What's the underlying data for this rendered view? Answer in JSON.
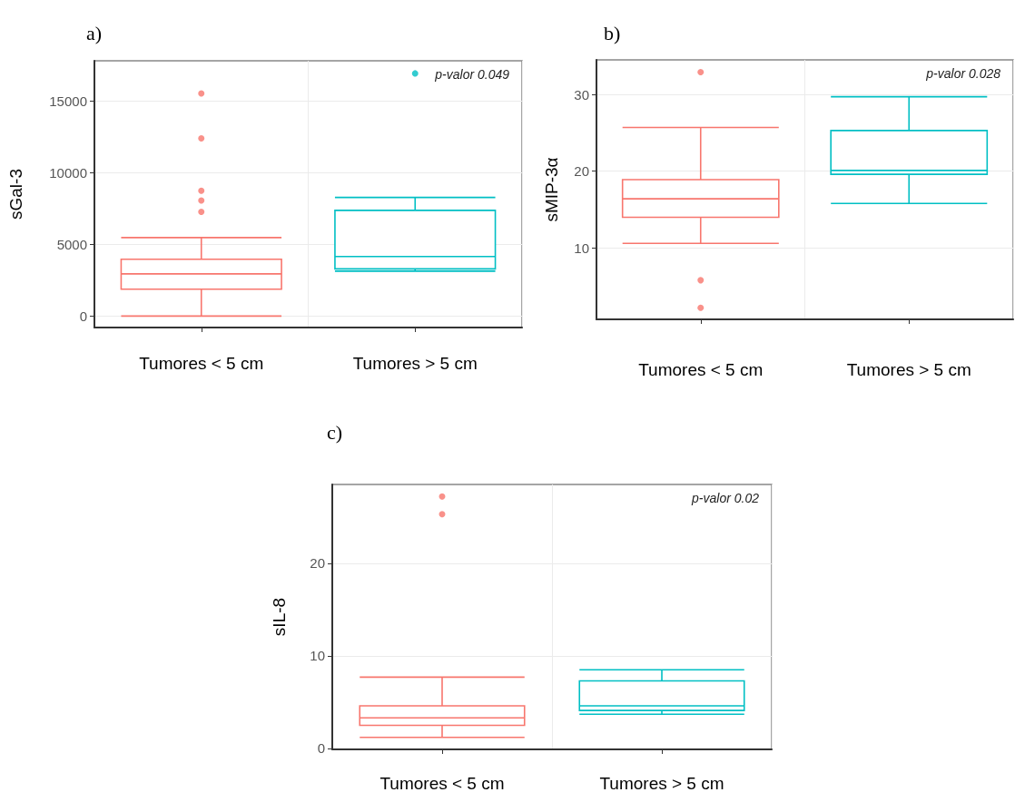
{
  "chart_data": [
    {
      "type": "box",
      "title": "a)",
      "ylabel": "sGal-3",
      "categories": [
        "Tumores < 5 cm",
        "Tumores > 5 cm"
      ],
      "colors": [
        "#f8766d",
        "#00bfc4"
      ],
      "boxes": [
        {
          "low": 0,
          "q1": 1870,
          "median": 2940,
          "q3": 3960,
          "high": 5470,
          "outliers": [
            7270,
            8060,
            8740,
            12390,
            15520
          ]
        },
        {
          "low": 3130,
          "q1": 3290,
          "median": 4150,
          "q3": 7370,
          "high": 8270,
          "outliers": [
            16920
          ]
        }
      ],
      "ylim": [
        -800,
        17800
      ],
      "yticks": [
        0,
        5000,
        10000,
        15000
      ],
      "grid": true,
      "annotations": [
        "p-valor 0.049"
      ]
    },
    {
      "type": "box",
      "title": "b)",
      "ylabel": "sMIP-3α",
      "categories": [
        "Tumores < 5 cm",
        "Tumores > 5 cm"
      ],
      "colors": [
        "#f8766d",
        "#00bfc4"
      ],
      "boxes": [
        {
          "low": 10.6,
          "q1": 14.0,
          "median": 16.4,
          "q3": 18.9,
          "high": 25.7,
          "outliers": [
            2.2,
            5.8,
            32.9
          ]
        },
        {
          "low": 15.8,
          "q1": 19.6,
          "median": 20.1,
          "q3": 25.3,
          "high": 29.7
        }
      ],
      "ylim": [
        0.7,
        34.5
      ],
      "yticks": [
        10,
        20,
        30
      ],
      "grid": true,
      "annotations": [
        "p-valor 0.028"
      ]
    },
    {
      "type": "box",
      "title": "c)",
      "ylabel": "sIL-8",
      "categories": [
        "Tumores < 5 cm",
        "Tumores > 5 cm"
      ],
      "colors": [
        "#f8766d",
        "#00bfc4"
      ],
      "boxes": [
        {
          "low": 1.2,
          "q1": 2.5,
          "median": 3.3,
          "q3": 4.6,
          "high": 7.7,
          "outliers": [
            25.3,
            27.2
          ]
        },
        {
          "low": 3.7,
          "q1": 4.1,
          "median": 4.6,
          "q3": 7.3,
          "high": 8.5
        }
      ],
      "ylim": [
        -0.1,
        28.5
      ],
      "yticks": [
        0,
        10,
        20
      ],
      "grid": true,
      "annotations": [
        "p-valor 0.02"
      ]
    }
  ]
}
